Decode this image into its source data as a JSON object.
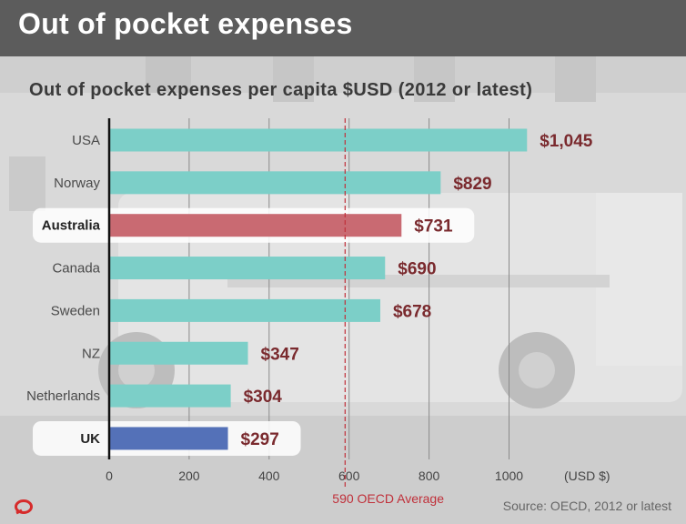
{
  "header": {
    "title": "Out of pocket expenses"
  },
  "footer": {
    "source": "Source: OECD, 2012 or latest"
  },
  "colors": {
    "bar_default": "#7ccfc8",
    "bar_australia": "#c96a72",
    "bar_uk": "#5471b8",
    "value_label": "#7a2a2e",
    "reference_line": "#c0303a",
    "header_bg": "#5c5c5c"
  },
  "chart_data": {
    "type": "bar",
    "orientation": "horizontal",
    "title": "Out of pocket expenses per capita $USD (2012 or latest)",
    "xlabel": "(USD $)",
    "ylabel": "",
    "xlim": [
      0,
      1050
    ],
    "xticks": [
      0,
      200,
      400,
      600,
      800,
      1000
    ],
    "grid": true,
    "categories": [
      "USA",
      "Norway",
      "Australia",
      "Canada",
      "Sweden",
      "NZ",
      "Netherlands",
      "UK"
    ],
    "values": [
      1045,
      829,
      731,
      690,
      678,
      347,
      304,
      297
    ],
    "value_labels": [
      "$1,045",
      "$829",
      "$731",
      "$690",
      "$678",
      "$347",
      "$304",
      "$297"
    ],
    "highlighted": [
      "Australia",
      "UK"
    ],
    "reference_line": {
      "value": 590,
      "label": "590  OECD Average"
    }
  }
}
